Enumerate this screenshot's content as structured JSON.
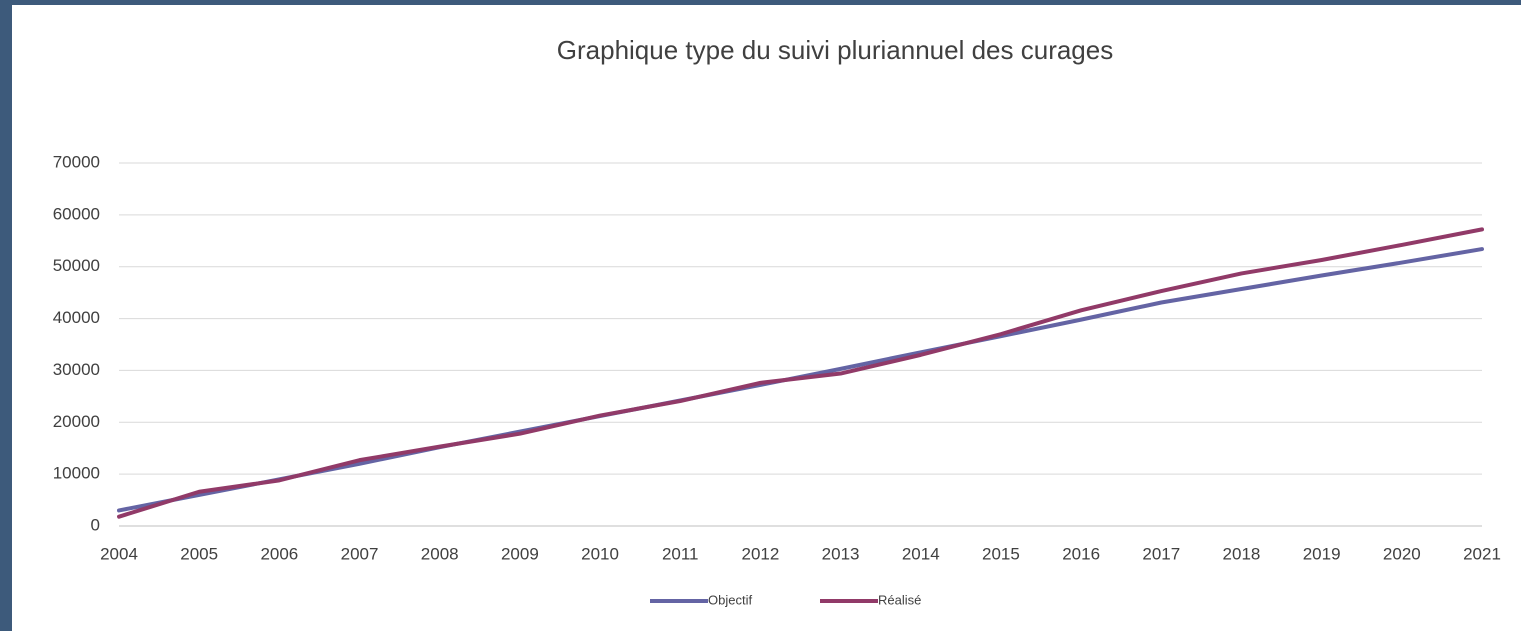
{
  "chart_data": {
    "type": "line",
    "title": "Graphique type du suivi pluriannuel des curages",
    "categories": [
      "2004",
      "2005",
      "2006",
      "2007",
      "2008",
      "2009",
      "2010",
      "2011",
      "2012",
      "2013",
      "2014",
      "2015",
      "2016",
      "2017",
      "2018",
      "2019",
      "2020",
      "2021"
    ],
    "series": [
      {
        "name": "Objectif",
        "color": "#6464a4",
        "values": [
          3000,
          6000,
          9000,
          12000,
          15200,
          18200,
          21200,
          24200,
          27200,
          30300,
          33500,
          36600,
          39800,
          43100,
          45700,
          48300,
          50800,
          53400
        ]
      },
      {
        "name": "Réalisé",
        "color": "#913a68",
        "values": [
          1800,
          6600,
          8800,
          12700,
          15300,
          17800,
          21300,
          24100,
          27600,
          29400,
          33000,
          37000,
          41600,
          45300,
          48700,
          51300,
          54200,
          57200
        ]
      }
    ],
    "ylim": [
      0,
      70000
    ],
    "yticks": [
      0,
      10000,
      20000,
      30000,
      40000,
      50000,
      60000,
      70000
    ],
    "grid": true,
    "legend": "bottom"
  }
}
